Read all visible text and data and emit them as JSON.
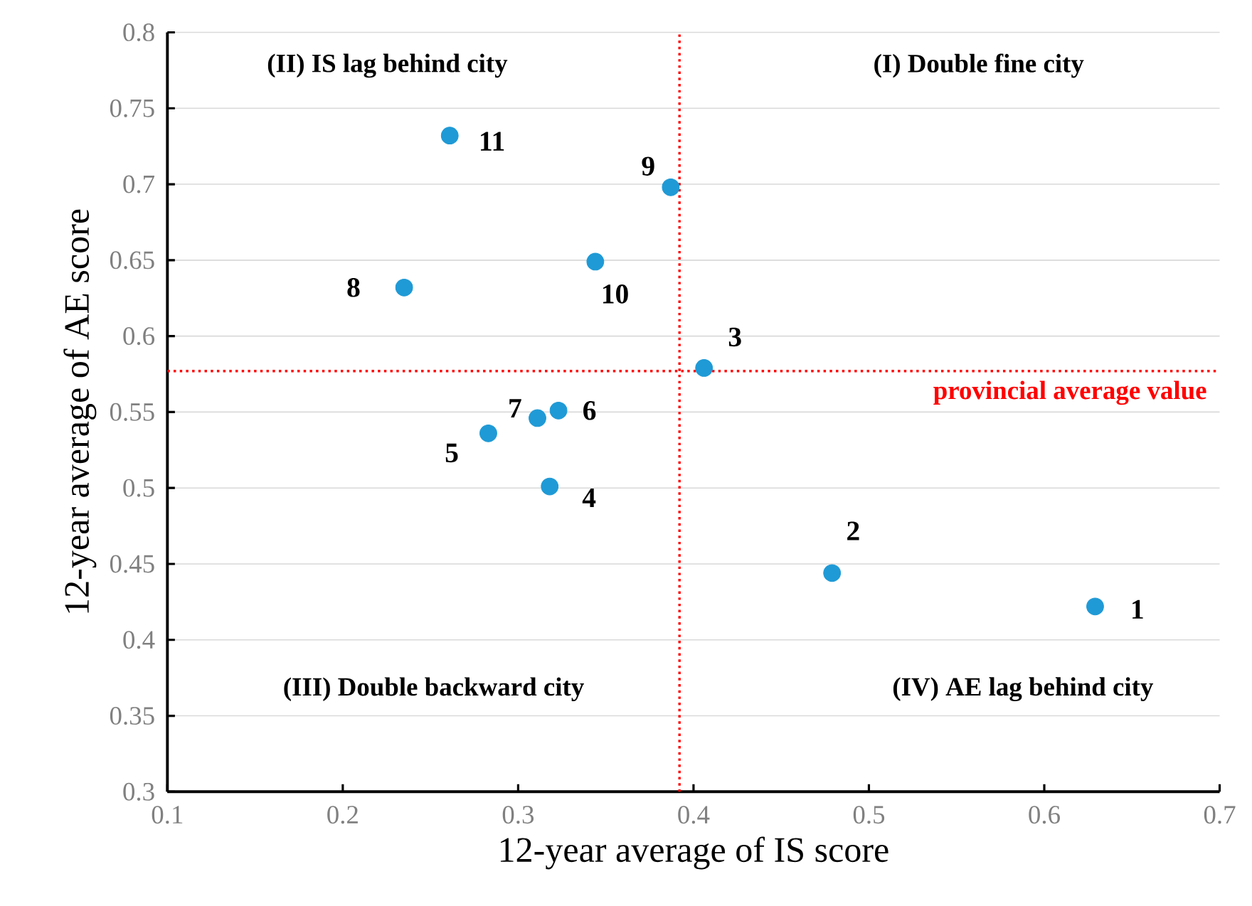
{
  "chart_data": {
    "type": "scatter",
    "xlabel": "12-year average of IS score",
    "ylabel": "12-year average of AE score",
    "xlim": [
      0.1,
      0.7
    ],
    "xticks": [
      0.1,
      0.2,
      0.3,
      0.4,
      0.5,
      0.6,
      0.7
    ],
    "ylim": [
      0.3,
      0.8
    ],
    "yticks": [
      0.3,
      0.35,
      0.4,
      0.45,
      0.5,
      0.55,
      0.6,
      0.65,
      0.7,
      0.75,
      0.8
    ],
    "grid": "y",
    "marker": "circle",
    "series": [
      {
        "color": "#1f9ad6",
        "x": [
          0.629,
          0.479,
          0.406,
          0.318,
          0.283,
          0.323,
          0.311,
          0.235,
          0.387,
          0.344,
          0.261
        ],
        "values": [
          0.422,
          0.444,
          0.579,
          0.501,
          0.536,
          0.551,
          0.546,
          0.632,
          0.698,
          0.649,
          0.732
        ]
      }
    ],
    "ref_lines": [
      {
        "axis": "x",
        "value": 0.392,
        "color": "#ff0000",
        "line_style": "dotted"
      },
      {
        "axis": "y",
        "value": 0.577,
        "label": "provincial average value",
        "color": "#ff0000",
        "line_style": "dotted"
      }
    ],
    "annotations": [
      {
        "text": "1",
        "x": 0.629,
        "y": 0.422
      },
      {
        "text": "2",
        "x": 0.479,
        "y": 0.444
      },
      {
        "text": "3",
        "x": 0.406,
        "y": 0.579
      },
      {
        "text": "4",
        "x": 0.318,
        "y": 0.501
      },
      {
        "text": "5",
        "x": 0.283,
        "y": 0.536
      },
      {
        "text": "6",
        "x": 0.323,
        "y": 0.551
      },
      {
        "text": "7",
        "x": 0.311,
        "y": 0.546
      },
      {
        "text": "8",
        "x": 0.235,
        "y": 0.632
      },
      {
        "text": "9",
        "x": 0.387,
        "y": 0.698
      },
      {
        "text": "10",
        "x": 0.344,
        "y": 0.649
      },
      {
        "text": "11",
        "x": 0.261,
        "y": 0.732
      },
      "(II) IS lag behind city",
      "(I) Double fine city",
      "(III) Double backward city",
      "(IV) AE lag behind city"
    ]
  }
}
